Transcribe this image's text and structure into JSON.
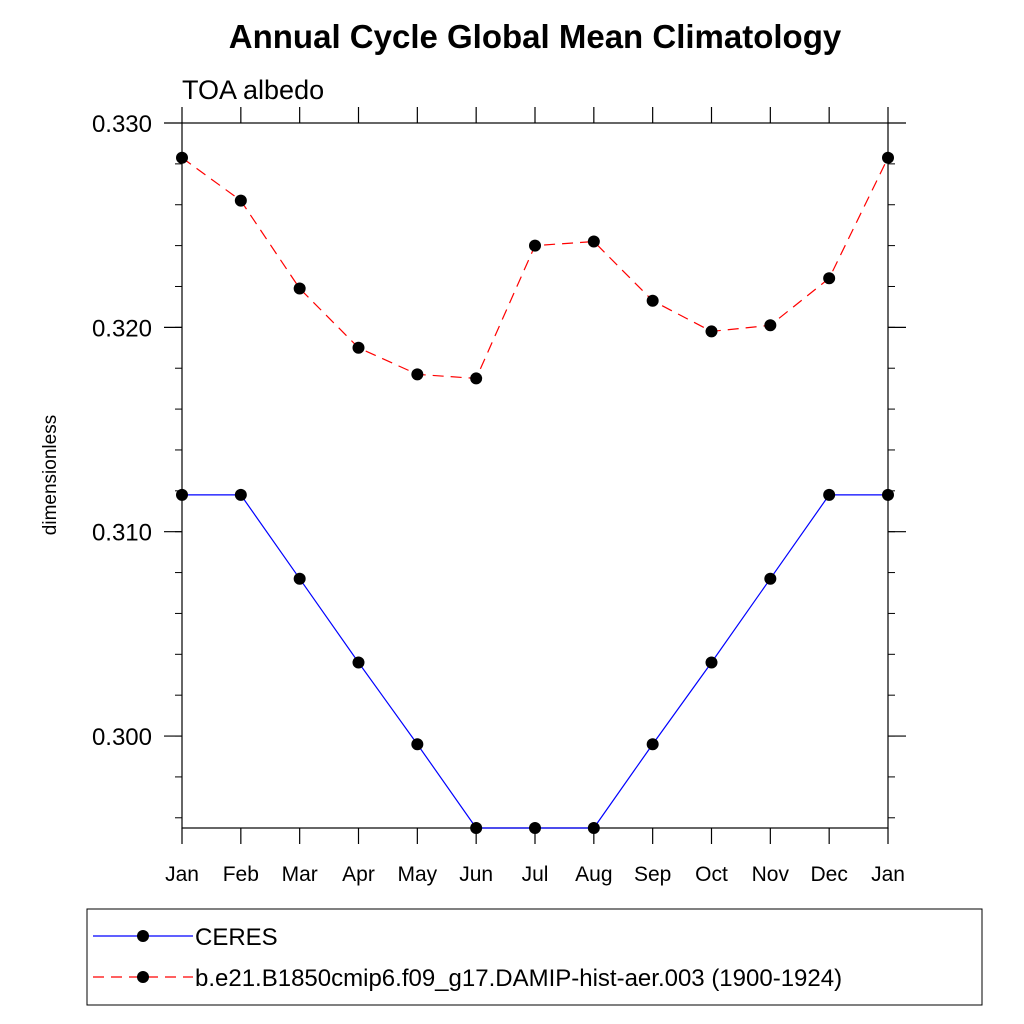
{
  "chart_data": {
    "type": "line",
    "title": "Annual Cycle Global Mean Climatology",
    "subtitle": "TOA albedo",
    "ylabel": "dimensionless",
    "xlabel": "",
    "categories": [
      "Jan",
      "Feb",
      "Mar",
      "Apr",
      "May",
      "Jun",
      "Jul",
      "Aug",
      "Sep",
      "Oct",
      "Nov",
      "Dec",
      "Jan"
    ],
    "ylim": [
      0.2955,
      0.33
    ],
    "yticks": [
      "0.300",
      "0.310",
      "0.320",
      "0.330"
    ],
    "ytick_values": [
      0.3,
      0.31,
      0.32,
      0.33
    ],
    "minor_tick_step": 0.002,
    "series": [
      {
        "name": "CERES",
        "color": "#0000ff",
        "line_style": "solid",
        "marker": "filled-circle",
        "values": [
          0.3118,
          0.3118,
          0.3077,
          0.3036,
          0.2996,
          0.2955,
          0.2955,
          0.2955,
          0.2996,
          0.3036,
          0.3077,
          0.3118,
          0.3118
        ]
      },
      {
        "name": "b.e21.B1850cmip6.f09_g17.DAMIP-hist-aer.003 (1900-1924)",
        "color": "#ff0000",
        "line_style": "dashed",
        "marker": "filled-circle",
        "values": [
          0.3283,
          0.3262,
          0.3219,
          0.319,
          0.3177,
          0.3175,
          0.324,
          0.3242,
          0.3213,
          0.3198,
          0.3201,
          0.3224,
          0.3283
        ]
      }
    ],
    "legend_position": "bottom"
  }
}
